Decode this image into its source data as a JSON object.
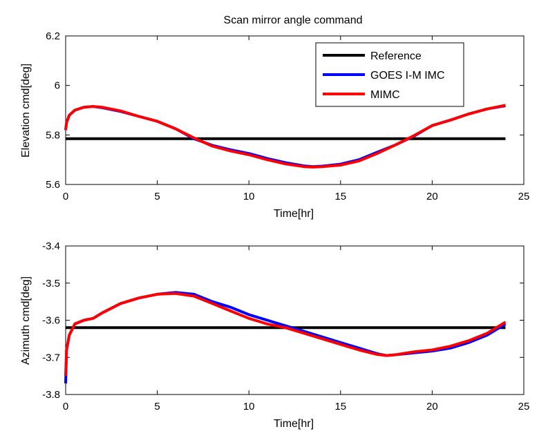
{
  "figure": {
    "title": "Scan mirror angle command"
  },
  "chart_data": [
    {
      "type": "line",
      "xlabel": "Time[hr]",
      "ylabel": "Elevation cmd[deg]",
      "xlim": [
        0,
        25
      ],
      "ylim": [
        5.6,
        6.2
      ],
      "xticks": [
        0,
        5,
        10,
        15,
        20,
        25
      ],
      "yticks": [
        5.6,
        5.8,
        6,
        6.2
      ],
      "xtick_labels": [
        "0",
        "5",
        "10",
        "15",
        "20",
        "25"
      ],
      "ytick_labels": [
        "5.6",
        "5.8",
        "6",
        "6.2"
      ],
      "grid": false,
      "legend": {
        "placement": "top-right",
        "entries": [
          {
            "name": "Reference",
            "color": "#000000"
          },
          {
            "name": "GOES I-M IMC",
            "color": "#0000ff"
          },
          {
            "name": "MIMC",
            "color": "#ff0000"
          }
        ]
      },
      "series": [
        {
          "name": "Reference",
          "color": "#000000",
          "x": [
            0,
            24
          ],
          "y": [
            5.785,
            5.785
          ]
        },
        {
          "name": "GOES I-M IMC",
          "color": "#0000ff",
          "x": [
            0,
            0.05,
            0.2,
            0.5,
            1,
            1.5,
            2,
            3,
            4,
            5,
            6,
            7,
            8,
            9,
            10,
            11,
            12,
            13,
            13.5,
            14,
            15,
            16,
            17,
            18,
            19,
            20,
            21,
            22,
            23,
            24
          ],
          "y": [
            5.82,
            5.85,
            5.88,
            5.9,
            5.912,
            5.915,
            5.91,
            5.895,
            5.875,
            5.855,
            5.825,
            5.785,
            5.758,
            5.74,
            5.725,
            5.705,
            5.688,
            5.675,
            5.672,
            5.674,
            5.682,
            5.7,
            5.73,
            5.76,
            5.795,
            5.838,
            5.86,
            5.885,
            5.905,
            5.918
          ]
        },
        {
          "name": "MIMC",
          "color": "#ff0000",
          "x": [
            0,
            0.05,
            0.2,
            0.5,
            1,
            1.5,
            2,
            3,
            4,
            5,
            6,
            7,
            8,
            9,
            10,
            11,
            12,
            13,
            13.5,
            14,
            15,
            16,
            17,
            18,
            19,
            20,
            21,
            22,
            23,
            24
          ],
          "y": [
            5.82,
            5.85,
            5.88,
            5.9,
            5.912,
            5.915,
            5.912,
            5.897,
            5.875,
            5.855,
            5.825,
            5.788,
            5.755,
            5.735,
            5.72,
            5.7,
            5.683,
            5.672,
            5.67,
            5.672,
            5.678,
            5.695,
            5.725,
            5.76,
            5.797,
            5.838,
            5.86,
            5.885,
            5.905,
            5.92
          ]
        }
      ]
    },
    {
      "type": "line",
      "xlabel": "Time[hr]",
      "ylabel": "Azimuth cmd[deg]",
      "xlim": [
        0,
        25
      ],
      "ylim": [
        -3.8,
        -3.4
      ],
      "xticks": [
        0,
        5,
        10,
        15,
        20,
        25
      ],
      "yticks": [
        -3.8,
        -3.7,
        -3.6,
        -3.5,
        -3.4
      ],
      "xtick_labels": [
        "0",
        "5",
        "10",
        "15",
        "20",
        "25"
      ],
      "ytick_labels": [
        "-3.8",
        "-3.7",
        "-3.6",
        "-3.5",
        "-3.4"
      ],
      "grid": false,
      "series": [
        {
          "name": "Reference",
          "color": "#000000",
          "x": [
            0,
            24
          ],
          "y": [
            -3.62,
            -3.62
          ]
        },
        {
          "name": "GOES I-M IMC",
          "color": "#0000ff",
          "x": [
            0,
            0.05,
            0.2,
            0.5,
            1,
            1.5,
            2,
            3,
            4,
            5,
            6,
            7,
            8,
            9,
            10,
            11,
            12,
            13,
            14,
            15,
            16,
            17,
            17.5,
            18,
            19,
            20,
            21,
            22,
            23,
            24
          ],
          "y": [
            -3.77,
            -3.68,
            -3.64,
            -3.61,
            -3.6,
            -3.595,
            -3.58,
            -3.555,
            -3.54,
            -3.53,
            -3.525,
            -3.53,
            -3.55,
            -3.565,
            -3.585,
            -3.6,
            -3.615,
            -3.63,
            -3.645,
            -3.66,
            -3.675,
            -3.69,
            -3.695,
            -3.693,
            -3.688,
            -3.683,
            -3.675,
            -3.66,
            -3.64,
            -3.61
          ]
        },
        {
          "name": "MIMC",
          "color": "#ff0000",
          "x": [
            0,
            0.05,
            0.2,
            0.5,
            1,
            1.5,
            2,
            3,
            4,
            5,
            6,
            7,
            8,
            9,
            10,
            11,
            12,
            13,
            14,
            15,
            16,
            17,
            17.5,
            18,
            19,
            20,
            21,
            22,
            23,
            24
          ],
          "y": [
            -3.75,
            -3.68,
            -3.64,
            -3.61,
            -3.6,
            -3.595,
            -3.58,
            -3.555,
            -3.54,
            -3.53,
            -3.528,
            -3.535,
            -3.555,
            -3.575,
            -3.595,
            -3.61,
            -3.62,
            -3.635,
            -3.65,
            -3.665,
            -3.68,
            -3.692,
            -3.695,
            -3.693,
            -3.685,
            -3.68,
            -3.67,
            -3.655,
            -3.635,
            -3.605
          ]
        }
      ]
    }
  ]
}
